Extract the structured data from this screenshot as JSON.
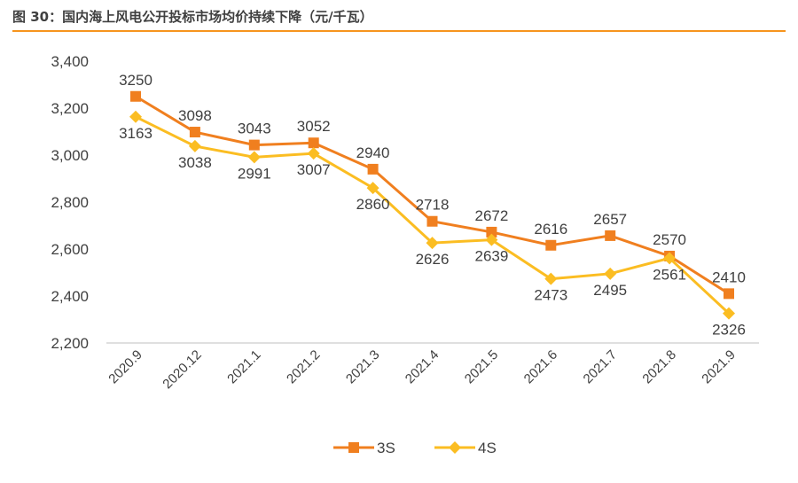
{
  "title": "图 30：国内海上风电公开投标市场均价持续下降（元/千瓦）",
  "chart_data": {
    "type": "line",
    "title": "图 30：国内海上风电公开投标市场均价持续下降（元/千瓦）",
    "categories": [
      "2020.9",
      "2020.12",
      "2021.1",
      "2021.2",
      "2021.3",
      "2021.4",
      "2021.5",
      "2021.6",
      "2021.7",
      "2021.8",
      "2021.9"
    ],
    "series": [
      {
        "name": "3S",
        "color": "#f07f1f",
        "marker": "square",
        "values": [
          3250,
          3098,
          3043,
          3052,
          2940,
          2718,
          2672,
          2616,
          2657,
          2570,
          2410
        ]
      },
      {
        "name": "4S",
        "color": "#fbbd22",
        "marker": "diamond",
        "values": [
          3163,
          3038,
          2991,
          3007,
          2860,
          2626,
          2639,
          2473,
          2495,
          2561,
          2326
        ]
      }
    ],
    "ylim": [
      2200,
      3400
    ],
    "yticks": [
      2200,
      2400,
      2600,
      2800,
      3000,
      3200,
      3400
    ],
    "ytick_labels": [
      "2,200",
      "2,400",
      "2,600",
      "2,800",
      "3,000",
      "3,200",
      "3,400"
    ],
    "grid": false,
    "legend": "bottom"
  }
}
